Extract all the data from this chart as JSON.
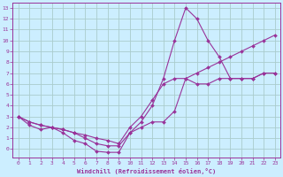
{
  "title": "",
  "xlabel": "Windchill (Refroidissement éolien,°C)",
  "background_color": "#cceeff",
  "grid_color": "#aacccc",
  "line_color": "#993399",
  "xlim": [
    -0.5,
    23.5
  ],
  "ylim": [
    -0.8,
    13.5
  ],
  "xticks": [
    0,
    1,
    2,
    3,
    4,
    5,
    6,
    7,
    8,
    9,
    10,
    11,
    12,
    13,
    14,
    15,
    16,
    17,
    18,
    19,
    20,
    21,
    22,
    23
  ],
  "yticks": [
    0,
    1,
    2,
    3,
    4,
    5,
    6,
    7,
    8,
    9,
    10,
    11,
    12,
    13
  ],
  "series1_x": [
    0,
    1,
    2,
    3,
    4,
    5,
    6,
    7,
    8,
    9,
    10,
    11,
    12,
    13,
    14,
    15,
    16,
    17,
    18,
    19,
    20,
    21,
    22,
    23
  ],
  "series1_y": [
    3.0,
    2.5,
    2.2,
    2.0,
    1.8,
    1.5,
    1.0,
    0.5,
    0.3,
    0.3,
    1.5,
    2.5,
    4.0,
    6.5,
    10.0,
    13.0,
    12.0,
    10.0,
    8.5,
    6.5,
    6.5,
    6.5,
    7.0,
    7.0
  ],
  "series2_x": [
    0,
    1,
    2,
    3,
    4,
    5,
    6,
    7,
    8,
    9,
    10,
    11,
    12,
    13,
    14,
    15,
    16,
    17,
    18,
    19,
    20,
    21,
    22,
    23
  ],
  "series2_y": [
    3.0,
    2.5,
    2.2,
    2.0,
    1.8,
    1.5,
    1.3,
    1.0,
    0.8,
    0.5,
    2.0,
    3.0,
    4.5,
    6.0,
    6.5,
    6.5,
    7.0,
    7.5,
    8.0,
    8.5,
    9.0,
    9.5,
    10.0,
    10.5
  ],
  "series3_x": [
    0,
    1,
    2,
    3,
    4,
    5,
    6,
    7,
    8,
    9,
    10,
    11,
    12,
    13,
    14,
    15,
    16,
    17,
    18,
    19,
    20,
    21,
    22,
    23
  ],
  "series3_y": [
    3.0,
    2.2,
    1.8,
    2.0,
    1.5,
    0.8,
    0.5,
    -0.2,
    -0.3,
    -0.3,
    1.5,
    2.0,
    2.5,
    2.5,
    3.5,
    6.5,
    6.0,
    6.0,
    6.5,
    6.5,
    6.5,
    6.5,
    7.0,
    7.0
  ]
}
